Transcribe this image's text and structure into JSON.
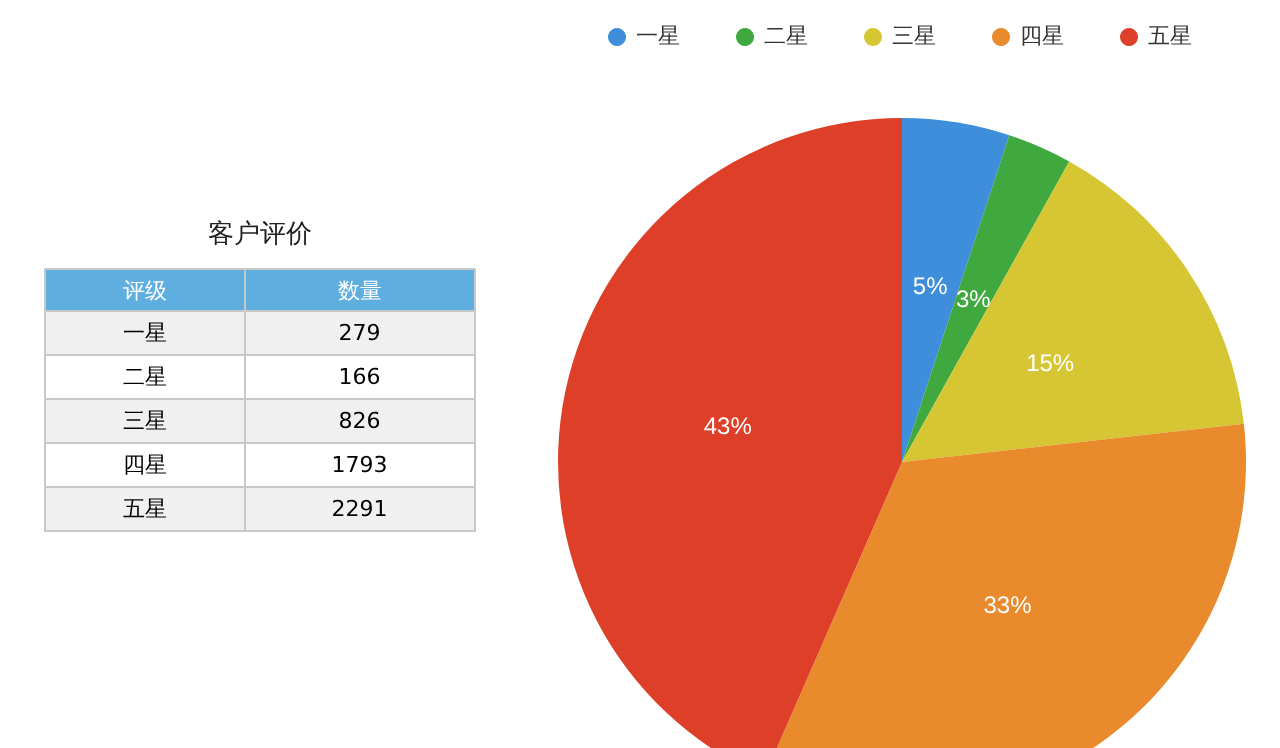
{
  "chart_data": [
    {
      "type": "other",
      "title": "客户评价",
      "annotations": [
        "评级",
        "数量"
      ],
      "categories": [
        "一星",
        "二星",
        "三星",
        "四星",
        "五星"
      ],
      "values": [
        279,
        166,
        826,
        1793,
        2291
      ],
      "data_labels": true
    },
    {
      "type": "pie",
      "categories": [
        "一星",
        "二星",
        "三星",
        "四星",
        "五星"
      ],
      "values": [
        5,
        3,
        15,
        33,
        43
      ],
      "value_labels": [
        "5%",
        "3%",
        "15%",
        "33%",
        "43%"
      ],
      "colors": [
        "#3e8edb",
        "#3fa940",
        "#d6c634",
        "#e98a2d",
        "#de3f28"
      ],
      "legend": "top"
    }
  ]
}
